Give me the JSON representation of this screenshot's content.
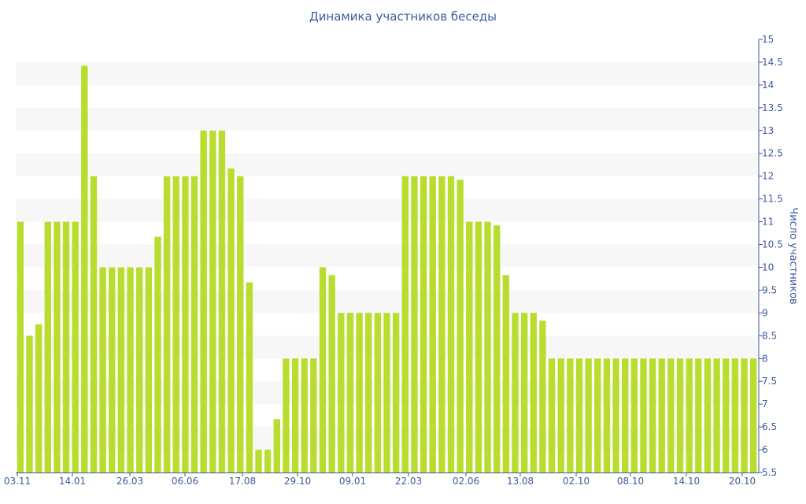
{
  "chart_data": {
    "type": "bar",
    "title": "Динамика участников беседы",
    "ylabel": "Число участников",
    "xlabel": "",
    "ylim": [
      5.5,
      15
    ],
    "y_ticks": [
      "5.5",
      "6",
      "6.5",
      "7",
      "7.5",
      "8",
      "8.5",
      "9",
      "9.5",
      "10",
      "10.5",
      "11",
      "11.5",
      "12",
      "12.5",
      "13",
      "13.5",
      "14",
      "14.5",
      "15"
    ],
    "x_tick_labels": [
      "03.11",
      "14.01",
      "26.03",
      "06.06",
      "17.08",
      "29.10",
      "09.01",
      "22.03",
      "02.06",
      "13.08",
      "02.10",
      "08.10",
      "14.10",
      "20.10"
    ],
    "grid": "horizontal alternating bands",
    "bar_color": "#b8dd2e",
    "series": [
      {
        "values": [
          11,
          8.5,
          8.75,
          11,
          11,
          11,
          11,
          14.42,
          12,
          10,
          10,
          10,
          10,
          10,
          10,
          10.67,
          12,
          12,
          12,
          12,
          13,
          13,
          13,
          12.17,
          12,
          9.67,
          6,
          6,
          6.67,
          8,
          8,
          8,
          8,
          10,
          9.83,
          9,
          9,
          9,
          9,
          9,
          9,
          9,
          12,
          12,
          12,
          12,
          12,
          12,
          11.92,
          11,
          11,
          11,
          10.92,
          9.83,
          9,
          9,
          9,
          8.83,
          8,
          8,
          8,
          8,
          8,
          8,
          8,
          8,
          8,
          8,
          8,
          8,
          8,
          8,
          8,
          8,
          8,
          8,
          8,
          8,
          8,
          8,
          8
        ]
      }
    ]
  }
}
